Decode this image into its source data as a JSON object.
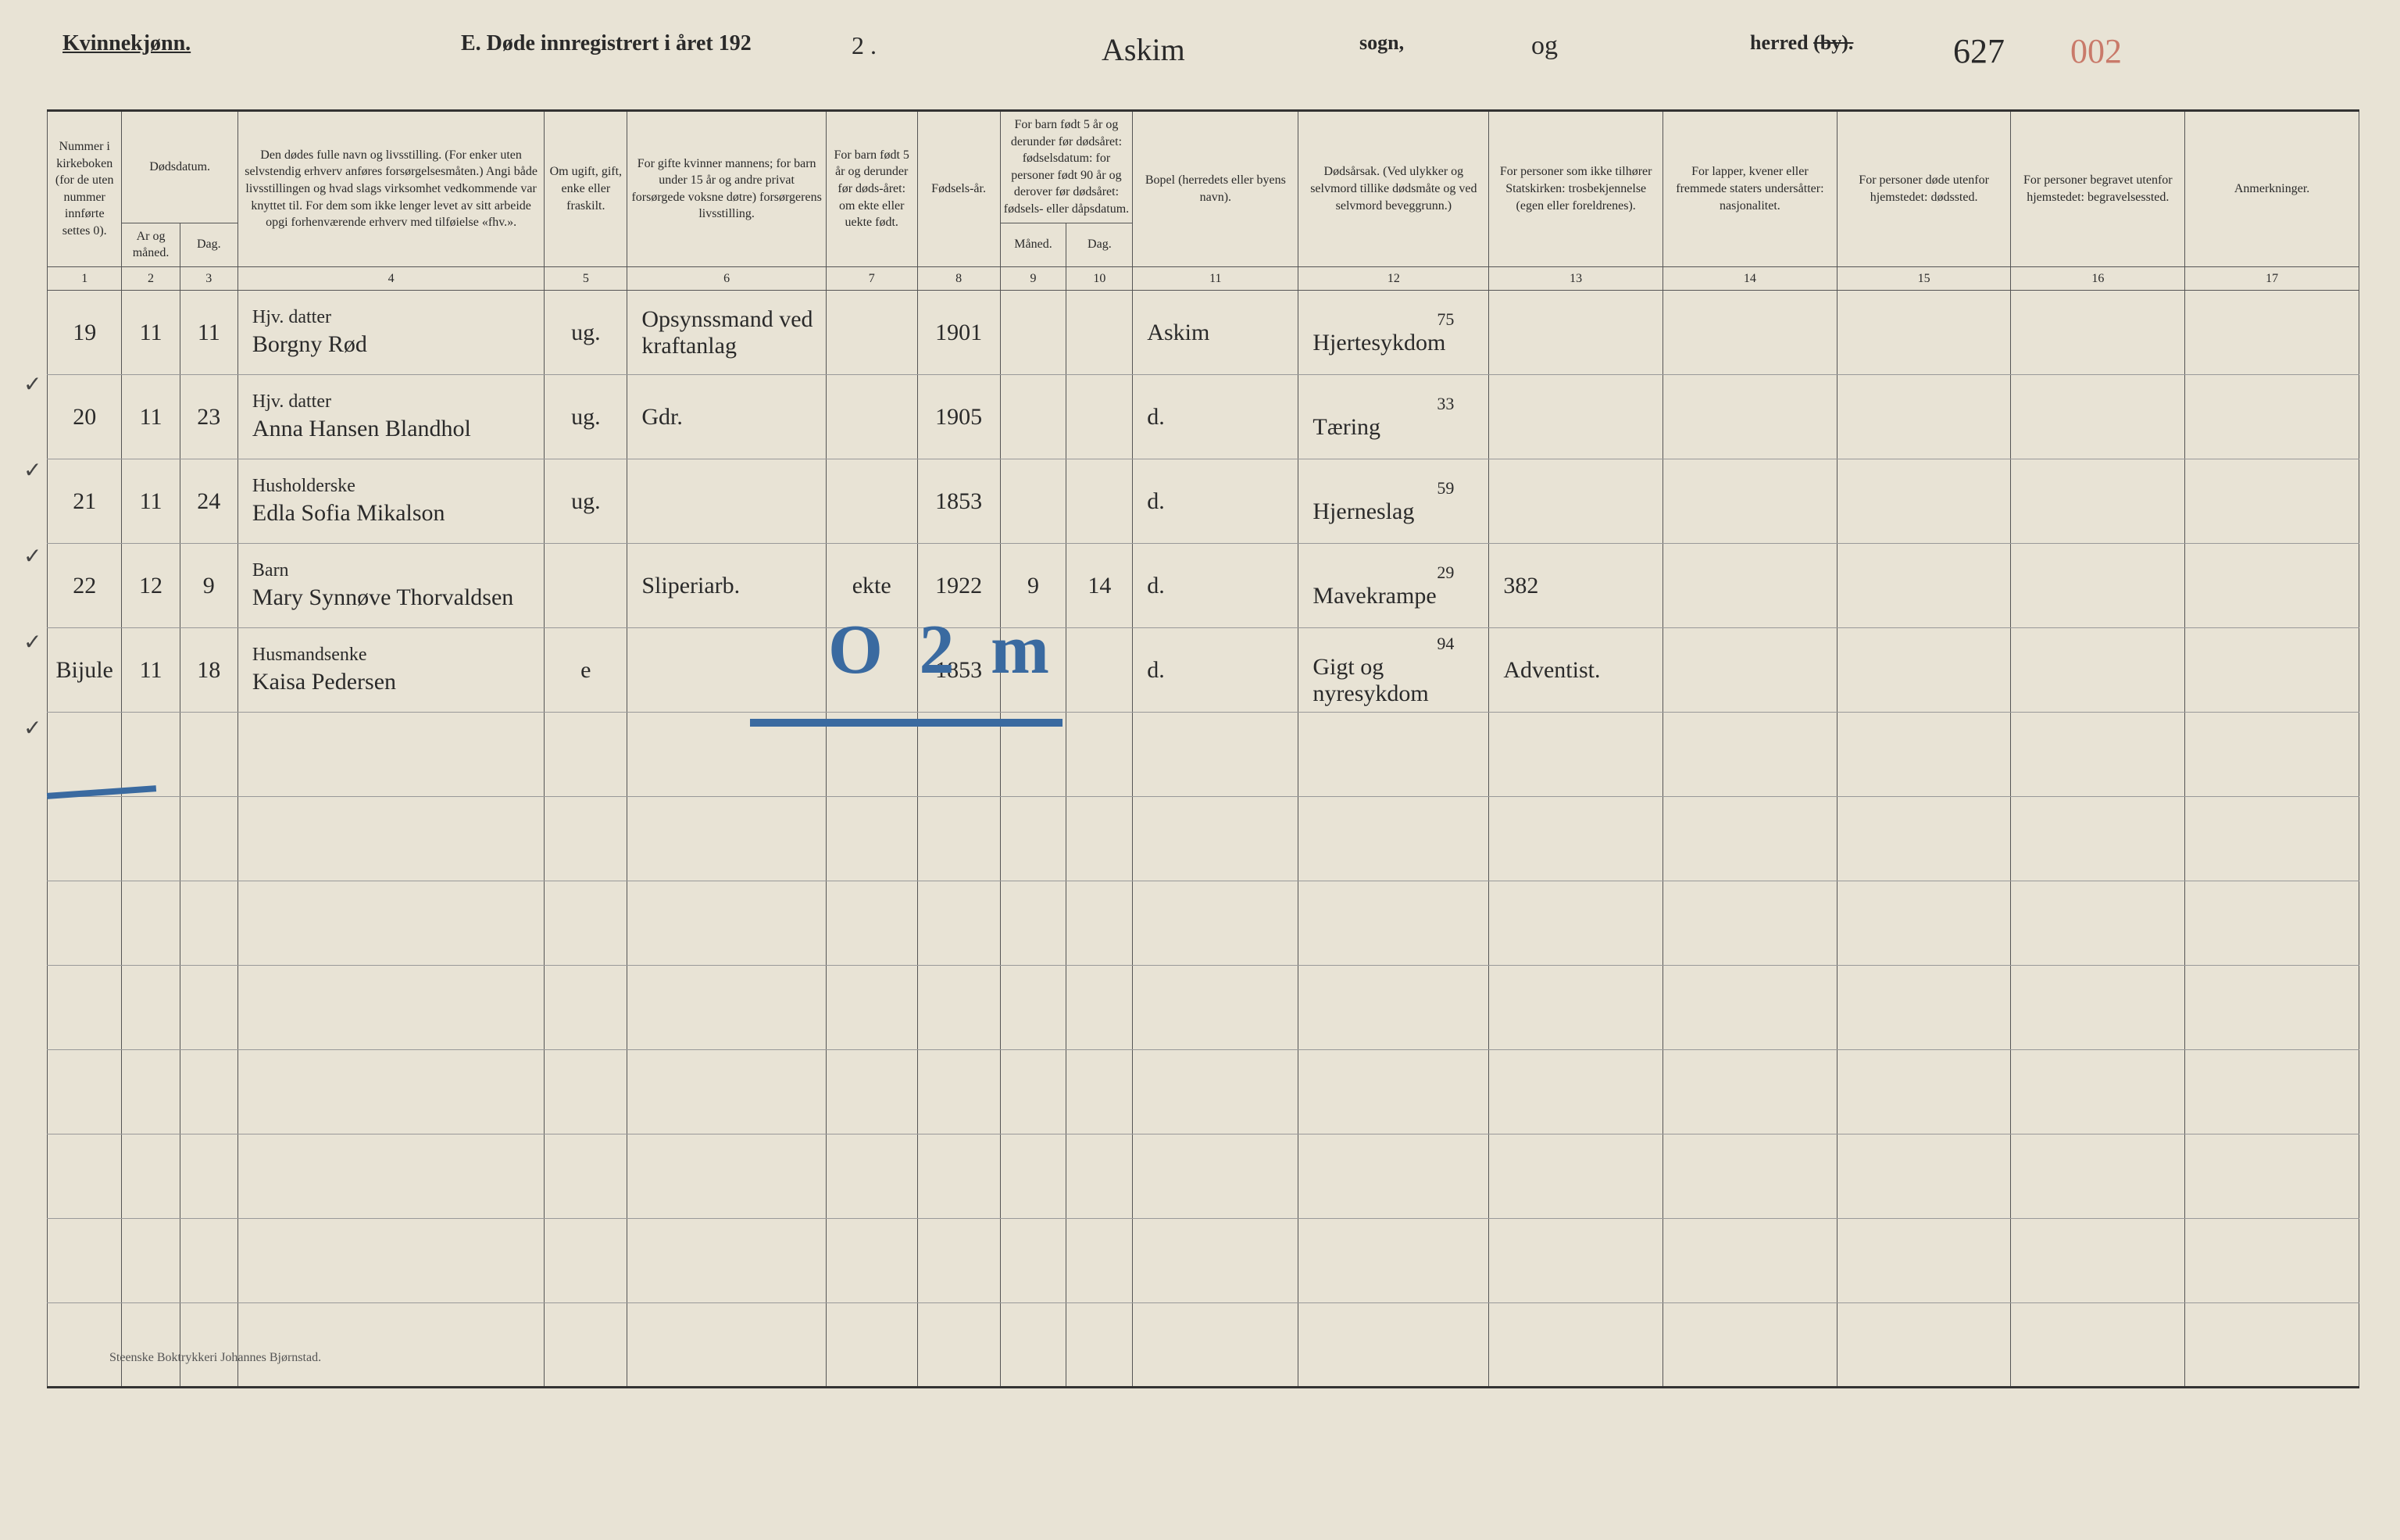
{
  "header": {
    "gender": "Kvinnekjønn.",
    "title": "E.  Døde innregistrert i året 192",
    "year_suffix": "2 .",
    "sogn_name": "Askim",
    "sogn_label": "sogn,",
    "herred_name": "og",
    "herred_label_pre": "herred ",
    "herred_label_strike": "(by).",
    "page_number": "627",
    "page_number_red": "002"
  },
  "columns": {
    "h1": "Nummer i kirkeboken (for de uten nummer innførte settes 0).",
    "h_dods": "Dødsdatum.",
    "h2": "Ar og måned.",
    "h3": "Dag.",
    "h4": "Den dødes fulle navn og livsstilling. (For enker uten selvstendig erhverv anføres forsørgelsesmåten.) Angi både livsstillingen og hvad slags virksomhet vedkommende var knyttet til. For dem som ikke lenger levet av sitt arbeide opgi forhenværende erhverv med tilføielse «fhv.».",
    "h5": "Om ugift, gift, enke eller fraskilt.",
    "h6": "For gifte kvinner mannens; for barn under 15 år og andre privat forsørgede voksne døtre) forsørgerens livsstilling.",
    "h7": "For barn født 5 år og derunder før døds-året: om ekte eller uekte født.",
    "h8": "Fødsels-år.",
    "h_barn": "For barn født 5 år og derunder før dødsåret: fødselsdatum: for personer født 90 år og derover før dødsåret: fødsels- eller dåpsdatum.",
    "h9": "Måned.",
    "h10": "Dag.",
    "h11": "Bopel (herredets eller byens navn).",
    "h12": "Dødsårsak. (Ved ulykker og selvmord tillike dødsmåte og ved selvmord beveggrunn.)",
    "h13": "For personer som ikke tilhører Statskirken: trosbekjennelse (egen eller foreldrenes).",
    "h14": "For lapper, kvener eller fremmede staters undersåtter: nasjonalitet.",
    "h15": "For personer døde utenfor hjemstedet: dødssted.",
    "h16": "For personer begravet utenfor hjemstedet: begravelsessted.",
    "h17": "Anmerkninger."
  },
  "colnums": [
    "1",
    "2",
    "3",
    "4",
    "5",
    "6",
    "7",
    "8",
    "9",
    "10",
    "11",
    "12",
    "13",
    "14",
    "15",
    "16",
    "17"
  ],
  "rows": [
    {
      "num": "19",
      "month": "11",
      "day": "11",
      "occupation": "Hjv. datter",
      "name": "Borgny Rød",
      "civil": "ug.",
      "provider": "Opsynssmand ved kraftanlag",
      "ekte": "",
      "birth": "1901",
      "bm": "",
      "bd": "",
      "bopel": "Askim",
      "cause_num": "75",
      "cause": "Hjertesykdom",
      "rel": "",
      "nat": "",
      "ds": "",
      "bg": "",
      "anm": ""
    },
    {
      "num": "20",
      "month": "11",
      "day": "23",
      "occupation": "Hjv. datter",
      "name": "Anna Hansen Blandhol",
      "civil": "ug.",
      "provider": "Gdr.",
      "ekte": "",
      "birth": "1905",
      "bm": "",
      "bd": "",
      "bopel": "d.",
      "cause_num": "33",
      "cause": "Tæring",
      "rel": "",
      "nat": "",
      "ds": "",
      "bg": "",
      "anm": ""
    },
    {
      "num": "21",
      "month": "11",
      "day": "24",
      "occupation": "Husholderske",
      "name": "Edla Sofia Mikalson",
      "civil": "ug.",
      "provider": "",
      "ekte": "",
      "birth": "1853",
      "bm": "",
      "bd": "",
      "bopel": "d.",
      "cause_num": "59",
      "cause": "Hjerneslag",
      "rel": "",
      "nat": "",
      "ds": "",
      "bg": "",
      "anm": ""
    },
    {
      "num": "22",
      "month": "12",
      "day": "9",
      "occupation": "Barn",
      "name": "Mary Synnøve Thorvaldsen",
      "civil": "",
      "provider": "Sliperiarb.",
      "ekte": "ekte",
      "birth": "1922",
      "bm": "9",
      "bd": "14",
      "bopel": "d.",
      "cause_num": "29",
      "cause": "Mavekrampe",
      "rel": "382",
      "nat": "",
      "ds": "",
      "bg": "",
      "anm": ""
    },
    {
      "num": "Bijule",
      "month": "11",
      "day": "18",
      "occupation": "Husmandsenke",
      "name": "Kaisa Pedersen",
      "civil": "e",
      "provider": "",
      "ekte": "",
      "birth": "1853",
      "bm": "",
      "bd": "",
      "bopel": "d.",
      "cause_num": "94",
      "cause": "Gigt og nyresykdom",
      "rel": "Adventist.",
      "nat": "",
      "ds": "",
      "bg": "",
      "anm": ""
    }
  ],
  "blank_rows": 8,
  "overlay": "O 2 m",
  "footer": "Steenske Boktrykkeri Johannes Bjørnstad."
}
